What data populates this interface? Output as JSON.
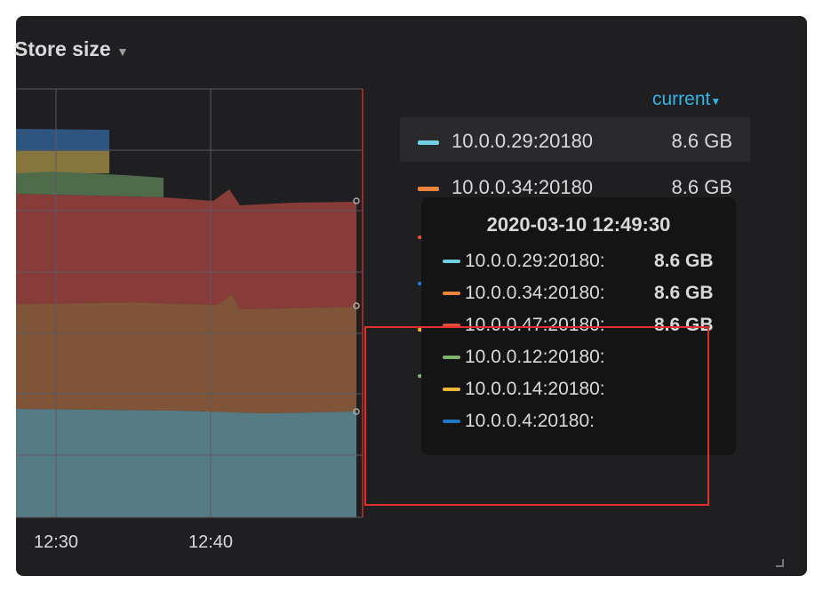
{
  "panel": {
    "title": "Store size",
    "x_labels": [
      "12:30",
      "12:40"
    ],
    "legend_header": "current",
    "legend": [
      {
        "name": "10.0.0.29:20180",
        "value": "8.6 GB",
        "color": "#6ed0e0"
      },
      {
        "name": "10.0.0.34:20180",
        "value": "8.6 GB",
        "color": "#ef843c"
      }
    ]
  },
  "tooltip": {
    "time": "2020-03-10 12:49:30",
    "rows": [
      {
        "name": "10.0.0.29:20180:",
        "value": "8.6 GB",
        "color": "#6ed0e0"
      },
      {
        "name": "10.0.0.34:20180:",
        "value": "8.6 GB",
        "color": "#ef843c"
      },
      {
        "name": "10.0.0.47:20180:",
        "value": "8.6 GB",
        "color": "#e24d42"
      },
      {
        "name": "10.0.0.12:20180:",
        "color": "#7eb26d"
      },
      {
        "name": "10.0.0.14:20180:",
        "color": "#eab839"
      },
      {
        "name": "10.0.0.4:20180:",
        "color": "#1f78c1"
      }
    ]
  }
}
